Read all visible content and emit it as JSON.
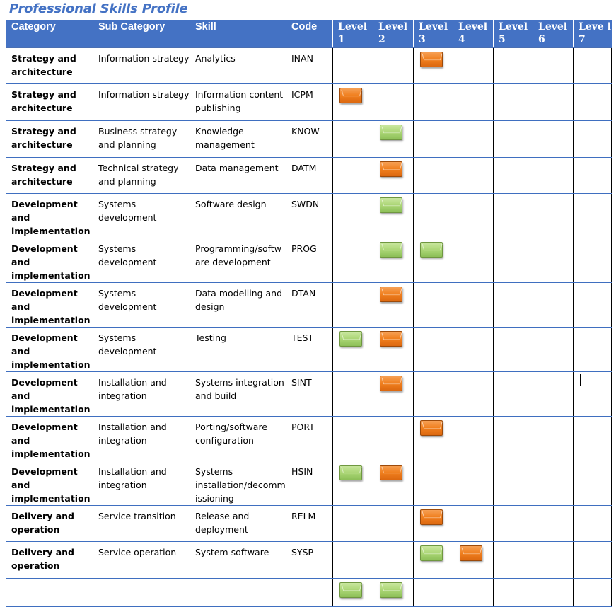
{
  "title": "Professional Skills Profile",
  "headers": {
    "category": "Category",
    "sub_category": "Sub Category",
    "skill": "Skill",
    "code": "Code",
    "levels": [
      "Level 1",
      "Level 2",
      "Level 3",
      "Level 4",
      "Level 5",
      "Level 6",
      "Leve l 7"
    ]
  },
  "colors": {
    "header_bg": "#4472C4",
    "marker_orange": "#F07F1E",
    "marker_green": "#A8D472"
  },
  "rows": [
    {
      "category": "Strategy and architecture",
      "sub_category": "Information strategy",
      "skill": "Analytics",
      "code": "INAN",
      "levels": {
        "3": "orange"
      }
    },
    {
      "category": "Strategy and architecture",
      "sub_category": "Information strategy",
      "skill": "Information content publishing",
      "code": "ICPM",
      "levels": {
        "1": "orange"
      }
    },
    {
      "category": "Strategy and architecture",
      "sub_category": "Business strategy and planning",
      "skill": "Knowledge management",
      "code": "KNOW",
      "levels": {
        "2": "green"
      }
    },
    {
      "category": "Strategy and architecture",
      "sub_category": "Technical strategy and planning",
      "skill": "Data management",
      "code": "DATM",
      "levels": {
        "2": "orange"
      }
    },
    {
      "category": "Development and implementation",
      "sub_category": "Systems development",
      "skill": "Software design",
      "code": "SWDN",
      "levels": {
        "2": "green"
      }
    },
    {
      "category": "Development and implementation",
      "sub_category": "Systems development",
      "skill": "Programming/software development",
      "code": "PROG",
      "levels": {
        "2": "green",
        "3": "green"
      }
    },
    {
      "category": "Development and implementation",
      "sub_category": "Systems development",
      "skill": "Data modelling and design",
      "code": "DTAN",
      "levels": {
        "2": "orange"
      }
    },
    {
      "category": "Development and implementation",
      "sub_category": "Systems development",
      "skill": "Testing",
      "code": "TEST",
      "levels": {
        "1": "green",
        "2": "orange"
      }
    },
    {
      "category": "Development and implementation",
      "sub_category": "Installation and integration",
      "skill": "Systems integration and build",
      "code": "SINT",
      "levels": {
        "2": "orange"
      }
    },
    {
      "category": "Development and implementation",
      "sub_category": "Installation and integration",
      "skill": "Porting/software configuration",
      "code": "PORT",
      "levels": {
        "3": "orange"
      }
    },
    {
      "category": "Development and implementation",
      "sub_category": "Installation and integration",
      "skill": "Systems installation/decommissioning",
      "code": "HSIN",
      "levels": {
        "1": "green",
        "2": "orange"
      }
    },
    {
      "category": "Delivery and operation",
      "sub_category": "Service transition",
      "skill": "Release and deployment",
      "code": "RELM",
      "levels": {
        "3": "orange"
      }
    },
    {
      "category": "Delivery and operation",
      "sub_category": "Service operation",
      "skill": "System software",
      "code": "SYSP",
      "levels": {
        "3": "green",
        "4": "orange"
      }
    },
    {
      "category": "",
      "sub_category": "",
      "skill": "",
      "code": "",
      "levels": {
        "1": "green",
        "2": "green"
      }
    }
  ]
}
